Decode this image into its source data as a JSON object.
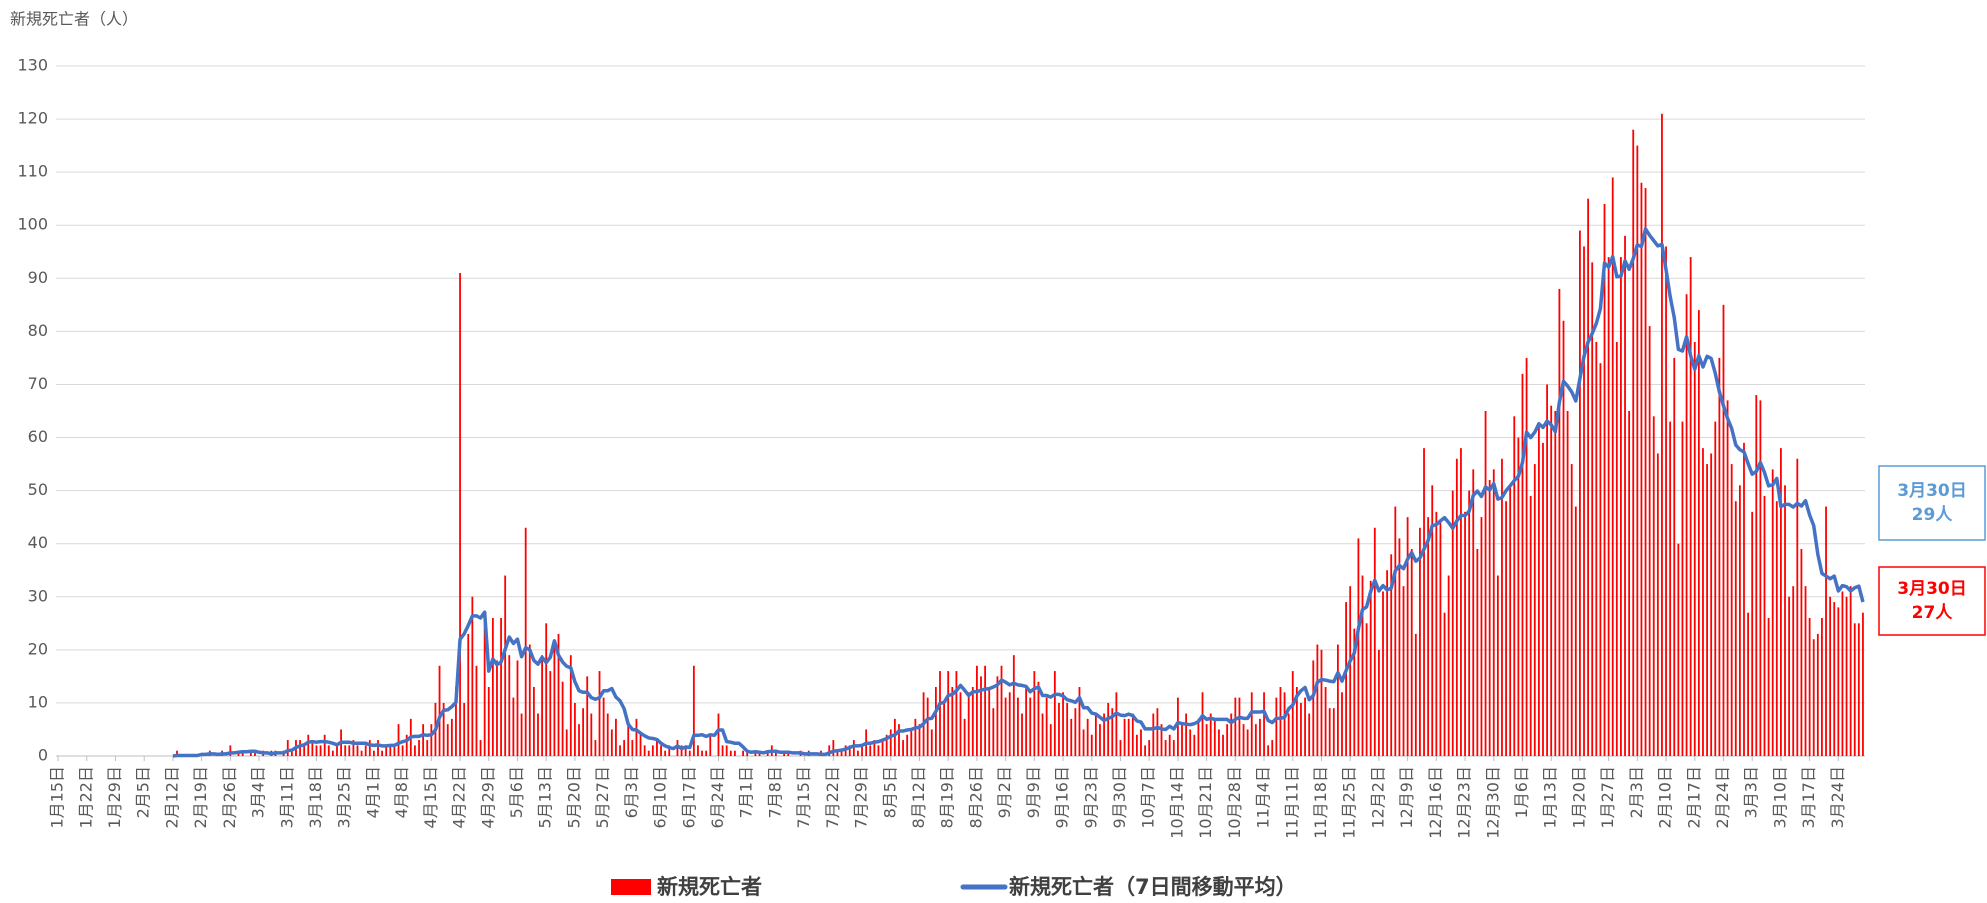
{
  "chart_data": {
    "type": "bar",
    "y_axis_label": "新規死亡者（人）",
    "ylim": [
      0,
      130
    ],
    "yticks": [
      0,
      10,
      20,
      30,
      40,
      50,
      60,
      70,
      80,
      90,
      100,
      110,
      120,
      130
    ],
    "grid": true,
    "categories": [
      "1月15日",
      null,
      null,
      null,
      null,
      null,
      null,
      "1月22日",
      null,
      null,
      null,
      null,
      null,
      null,
      "1月29日",
      null,
      null,
      null,
      null,
      null,
      null,
      "2月5日",
      null,
      null,
      null,
      null,
      null,
      null,
      "2月12日",
      null,
      null,
      null,
      null,
      null,
      null,
      "2月19日",
      null,
      null,
      null,
      null,
      null,
      null,
      "2月26日",
      null,
      null,
      null,
      null,
      null,
      null,
      "3月4日",
      null,
      null,
      null,
      null,
      null,
      null,
      "3月11日",
      null,
      null,
      null,
      null,
      null,
      null,
      "3月18日",
      null,
      null,
      null,
      null,
      null,
      null,
      "3月25日",
      null,
      null,
      null,
      null,
      null,
      null,
      "4月1日",
      null,
      null,
      null,
      null,
      null,
      null,
      "4月8日",
      null,
      null,
      null,
      null,
      null,
      null,
      "4月15日",
      null,
      null,
      null,
      null,
      null,
      null,
      "4月22日",
      null,
      null,
      null,
      null,
      null,
      null,
      "4月29日",
      null,
      null,
      null,
      null,
      null,
      null,
      "5月6日",
      null,
      null,
      null,
      null,
      null,
      null,
      "5月13日",
      null,
      null,
      null,
      null,
      null,
      null,
      "5月20日",
      null,
      null,
      null,
      null,
      null,
      null,
      "5月27日",
      null,
      null,
      null,
      null,
      null,
      null,
      "6月3日",
      null,
      null,
      null,
      null,
      null,
      null,
      "6月10日",
      null,
      null,
      null,
      null,
      null,
      null,
      "6月17日",
      null,
      null,
      null,
      null,
      null,
      null,
      "6月24日",
      null,
      null,
      null,
      null,
      null,
      null,
      "7月1日",
      null,
      null,
      null,
      null,
      null,
      null,
      "7月8日",
      null,
      null,
      null,
      null,
      null,
      null,
      "7月15日",
      null,
      null,
      null,
      null,
      null,
      null,
      "7月22日",
      null,
      null,
      null,
      null,
      null,
      null,
      "7月29日",
      null,
      null,
      null,
      null,
      null,
      null,
      "8月5日",
      null,
      null,
      null,
      null,
      null,
      null,
      "8月12日",
      null,
      null,
      null,
      null,
      null,
      null,
      "8月19日",
      null,
      null,
      null,
      null,
      null,
      null,
      "8月26日",
      null,
      null,
      null,
      null,
      null,
      null,
      "9月2日",
      null,
      null,
      null,
      null,
      null,
      null,
      "9月9日",
      null,
      null,
      null,
      null,
      null,
      null,
      "9月16日",
      null,
      null,
      null,
      null,
      null,
      null,
      "9月23日",
      null,
      null,
      null,
      null,
      null,
      null,
      "9月30日",
      null,
      null,
      null,
      null,
      null,
      null,
      "10月7日",
      null,
      null,
      null,
      null,
      null,
      null,
      "10月14日",
      null,
      null,
      null,
      null,
      null,
      null,
      "10月21日",
      null,
      null,
      null,
      null,
      null,
      null,
      "10月28日",
      null,
      null,
      null,
      null,
      null,
      null,
      "11月4日",
      null,
      null,
      null,
      null,
      null,
      null,
      "11月11日",
      null,
      null,
      null,
      null,
      null,
      null,
      "11月18日",
      null,
      null,
      null,
      null,
      null,
      null,
      "11月25日",
      null,
      null,
      null,
      null,
      null,
      null,
      "12月2日",
      null,
      null,
      null,
      null,
      null,
      null,
      "12月9日",
      null,
      null,
      null,
      null,
      null,
      null,
      "12月16日",
      null,
      null,
      null,
      null,
      null,
      null,
      "12月23日",
      null,
      null,
      null,
      null,
      null,
      null,
      "12月30日",
      null,
      null,
      null,
      null,
      null,
      null,
      "1月6日",
      null,
      null,
      null,
      null,
      null,
      null,
      "1月13日",
      null,
      null,
      null,
      null,
      null,
      null,
      "1月20日",
      null,
      null,
      null,
      null,
      null,
      null,
      "1月27日",
      null,
      null,
      null,
      null,
      null,
      null,
      "2月3日",
      null,
      null,
      null,
      null,
      null,
      null,
      "2月10日",
      null,
      null,
      null,
      null,
      null,
      null,
      "2月17日",
      null,
      null,
      null,
      null,
      null,
      null,
      "2月24日",
      null,
      null,
      null,
      null,
      null,
      null,
      "3月3日",
      null,
      null,
      null,
      null,
      null,
      null,
      "3月10日",
      null,
      null,
      null,
      null,
      null,
      null,
      "3月17日",
      null,
      null,
      null,
      null,
      null,
      null,
      "3月24日",
      null,
      null,
      null,
      null,
      null,
      null
    ],
    "series": [
      {
        "name": "新規死亡者",
        "type": "bar",
        "color": "#ff0000",
        "values": [
          null,
          null,
          null,
          null,
          null,
          null,
          null,
          null,
          null,
          null,
          null,
          null,
          null,
          null,
          null,
          null,
          null,
          null,
          null,
          null,
          null,
          null,
          null,
          null,
          null,
          null,
          null,
          null,
          0,
          1,
          0,
          0,
          0,
          0,
          0,
          0,
          0,
          1,
          0,
          0,
          1,
          0,
          2,
          0,
          1,
          1,
          0,
          1,
          1,
          0,
          1,
          0,
          1,
          1,
          0,
          1,
          3,
          1,
          3,
          3,
          2,
          4,
          3,
          2,
          2,
          4,
          2,
          1,
          2,
          5,
          2,
          2,
          3,
          2,
          1,
          2,
          3,
          1,
          3,
          1,
          2,
          2,
          2,
          6,
          2,
          4,
          7,
          2,
          3,
          6,
          3,
          6,
          10,
          17,
          10,
          6,
          7,
          13,
          91,
          10,
          23,
          30,
          17,
          3,
          26,
          13,
          26,
          18,
          26,
          34,
          19,
          11,
          18,
          8,
          43,
          21,
          13,
          8,
          19,
          25,
          16,
          21,
          23,
          14,
          5,
          19,
          10,
          6,
          9,
          15,
          8,
          3,
          16,
          11,
          8,
          5,
          7,
          2,
          3,
          6,
          3,
          7,
          4,
          2,
          1,
          2,
          3,
          2,
          1,
          2,
          0,
          3,
          2,
          2,
          1,
          17,
          2,
          1,
          1,
          4,
          0,
          8,
          2,
          2,
          1,
          1,
          0,
          1,
          1,
          0,
          1,
          1,
          0,
          1,
          2,
          1,
          0,
          1,
          1,
          0,
          0,
          1,
          0,
          1,
          0,
          0,
          1,
          0,
          2,
          3,
          1,
          1,
          2,
          2,
          3,
          1,
          2,
          5,
          2,
          3,
          2,
          3,
          4,
          5,
          7,
          6,
          3,
          4,
          5,
          7,
          6,
          12,
          11,
          5,
          13,
          16,
          10,
          16,
          13,
          16,
          12,
          7,
          12,
          13,
          17,
          15,
          17,
          13,
          9,
          15,
          17,
          11,
          12,
          19,
          11,
          8,
          13,
          11,
          16,
          14,
          8,
          11,
          6,
          16,
          10,
          12,
          10,
          7,
          9,
          13,
          5,
          7,
          4,
          8,
          6,
          8,
          10,
          9,
          12,
          3,
          7,
          7,
          8,
          4,
          5,
          2,
          3,
          8,
          9,
          6,
          3,
          4,
          3,
          11,
          6,
          8,
          5,
          4,
          7,
          12,
          6,
          8,
          7,
          5,
          4,
          6,
          8,
          11,
          11,
          6,
          5,
          12,
          6,
          7,
          12,
          2,
          3,
          11,
          13,
          12,
          8,
          16,
          13,
          10,
          11,
          8,
          18,
          21,
          20,
          13,
          9,
          9,
          21,
          12,
          29,
          32,
          24,
          41,
          34,
          25,
          33,
          43,
          20,
          31,
          35,
          38,
          47,
          41,
          32,
          45,
          39,
          23,
          43,
          58,
          45,
          51,
          46,
          44,
          27,
          34,
          50,
          56,
          58,
          46,
          50,
          54,
          39,
          45,
          65,
          52,
          54,
          34,
          56,
          48,
          51,
          64,
          60,
          72,
          75,
          49,
          55,
          62,
          59,
          70,
          66,
          65,
          88,
          82,
          65,
          55,
          47,
          99,
          96,
          105,
          93,
          78,
          74,
          104,
          94,
          109,
          78,
          94,
          98,
          65,
          118,
          115,
          108,
          107,
          81,
          64,
          57,
          121,
          96,
          63,
          75,
          40,
          63,
          87,
          94,
          78,
          84,
          58,
          55,
          57,
          63,
          75,
          85,
          67,
          55,
          48,
          51,
          59,
          27,
          46,
          68,
          67,
          49,
          26,
          54,
          48,
          58,
          51,
          30,
          32,
          56,
          39,
          32,
          26,
          22,
          23,
          26,
          47,
          30,
          29,
          28,
          31,
          30,
          32,
          25,
          25,
          27
        ]
      },
      {
        "name": "新規死亡者（7日間移動平均）",
        "type": "line",
        "color": "#4472c4",
        "values": [
          null,
          null,
          null,
          null,
          null,
          null,
          null,
          null,
          null,
          null,
          null,
          null,
          null,
          null,
          null,
          null,
          null,
          null,
          null,
          null,
          null,
          null,
          null,
          null,
          null,
          null,
          null,
          null,
          0,
          0.1,
          0.1,
          0.1,
          0.1,
          0.1,
          0.1,
          0.3,
          0.3,
          0.4,
          0.4,
          0.3,
          0.4,
          0.4,
          0.6,
          0.6,
          0.7,
          0.8,
          0.8,
          0.9,
          0.9,
          0.7,
          0.6,
          0.6,
          0.4,
          0.6,
          0.6,
          0.6,
          1,
          1.1,
          1.6,
          1.9,
          2.1,
          2.6,
          2.7,
          2.6,
          2.7,
          2.7,
          2.6,
          2.4,
          2.1,
          2.6,
          2.6,
          2.6,
          2.4,
          2.4,
          2.4,
          2.4,
          2.1,
          2,
          2.1,
          1.9,
          1.9,
          2,
          2,
          2.4,
          2.7,
          2.9,
          3.6,
          3.7,
          3.7,
          4,
          3.9,
          4,
          4.9,
          7.3,
          8.6,
          8.7,
          9.3,
          10.1,
          22,
          23,
          24.6,
          26.4,
          26.4,
          26,
          27.1,
          16,
          18.3,
          17.2,
          17.7,
          20.1,
          22.4,
          21.2,
          22,
          18.7,
          20.4,
          20,
          18,
          17.3,
          18.6,
          17.6,
          18.6,
          21.7,
          19,
          17.7,
          16.9,
          16.6,
          14,
          12.3,
          12,
          12,
          11,
          10.7,
          11,
          12.3,
          12.3,
          12.7,
          11.1,
          10.4,
          8.9,
          6,
          5,
          4.9,
          4.3,
          3.8,
          3.4,
          3.3,
          3.1,
          2.4,
          1.9,
          1.6,
          1.4,
          1.9,
          1.4,
          1.7,
          1.6,
          3.9,
          3.9,
          4,
          3.7,
          4,
          3.9,
          4.9,
          4.9,
          2.7,
          2.6,
          2.4,
          2.4,
          1.7,
          0.9,
          0.7,
          0.8,
          0.7,
          0.6,
          0.8,
          0.9,
          0.9,
          0.7,
          0.7,
          0.7,
          0.6,
          0.6,
          0.6,
          0.4,
          0.4,
          0.4,
          0.4,
          0.3,
          0.3,
          0.6,
          0.9,
          1,
          1.1,
          1.3,
          1.6,
          1.9,
          1.9,
          2,
          2.4,
          2.4,
          2.6,
          2.7,
          3,
          3.3,
          3.7,
          4,
          4.7,
          4.7,
          4.9,
          5,
          5.3,
          5.4,
          6.1,
          7,
          7.1,
          8.4,
          9.9,
          10.1,
          11.4,
          11.6,
          12.3,
          13.3,
          12.4,
          11.4,
          12.1,
          12.1,
          12.4,
          12.6,
          12.7,
          13,
          13.4,
          14.3,
          13.9,
          13.4,
          13.7,
          13.4,
          13.3,
          13.1,
          12.1,
          12.7,
          13,
          11.4,
          11.4,
          11.1,
          11.6,
          11.6,
          11.3,
          10.6,
          10.4,
          10.1,
          11,
          9.1,
          9.1,
          8.1,
          7.9,
          7.3,
          6.7,
          7.1,
          7.4,
          8.1,
          7.7,
          7.6,
          7.9,
          7.6,
          6.6,
          6.4,
          5.1,
          5.1,
          5.1,
          5.4,
          5.1,
          5,
          5.6,
          5.1,
          6.3,
          6.1,
          6,
          5.9,
          6.1,
          6.5,
          7.6,
          6.9,
          7.1,
          6.9,
          6.9,
          6.9,
          6.9,
          6.3,
          6.9,
          7.3,
          7.1,
          7.1,
          8.3,
          8.3,
          8.3,
          8.4,
          6.7,
          6.3,
          7.1,
          7.1,
          7.3,
          8.9,
          9.6,
          11.3,
          12.3,
          12.9,
          10.6,
          11.4,
          13.9,
          14.4,
          14.3,
          14.1,
          14,
          15.7,
          14.1,
          16.1,
          17.9,
          19.4,
          24,
          27.6,
          28.1,
          31,
          33.1,
          31.1,
          32.1,
          31.3,
          31.6,
          34.9,
          35.9,
          35.3,
          37.1,
          38.3,
          36.7,
          37.3,
          39,
          40.6,
          43.4,
          43.6,
          44.3,
          44.9,
          44,
          42.9,
          44.3,
          45.3,
          45.3,
          46.1,
          49.1,
          49.9,
          48.9,
          50.7,
          50.1,
          51.3,
          48.4,
          48.7,
          50,
          50.9,
          51.9,
          52.7,
          55.3,
          61,
          60,
          61,
          62.6,
          61.9,
          63.1,
          62.4,
          61.1,
          66.7,
          70.6,
          69.7,
          68.6,
          66.9,
          71.1,
          75.3,
          78,
          79.6,
          81.5,
          84.3,
          92.9,
          92.1,
          94.1,
          90.3,
          90.4,
          93.3,
          91.7,
          93.7,
          96.3,
          96,
          99.3,
          98.1,
          97.1,
          96.1,
          96.4,
          91.6,
          86.6,
          82.6,
          76.6,
          76.3,
          79,
          75.4,
          72.9,
          75.4,
          73.3,
          75.3,
          74.9,
          72.1,
          68.6,
          66,
          63.6,
          61.7,
          58.6,
          57.7,
          57.3,
          55.1,
          53.1,
          53.6,
          55.3,
          53.4,
          50.9,
          51.1,
          52.3,
          47,
          47.4,
          47.4,
          46.9,
          47.6,
          47.1,
          48.1,
          45.4,
          43.4,
          38,
          34.4,
          33.9,
          33.4,
          33.9,
          31.1,
          32.1,
          31.9,
          31.1,
          31.7,
          32,
          29
        ]
      }
    ],
    "annotations": [
      {
        "lines": [
          "3月30日",
          "29人"
        ],
        "color": "#5b9bd5"
      },
      {
        "lines": [
          "3月30日",
          "27人"
        ],
        "color": "#ff0000"
      }
    ]
  }
}
